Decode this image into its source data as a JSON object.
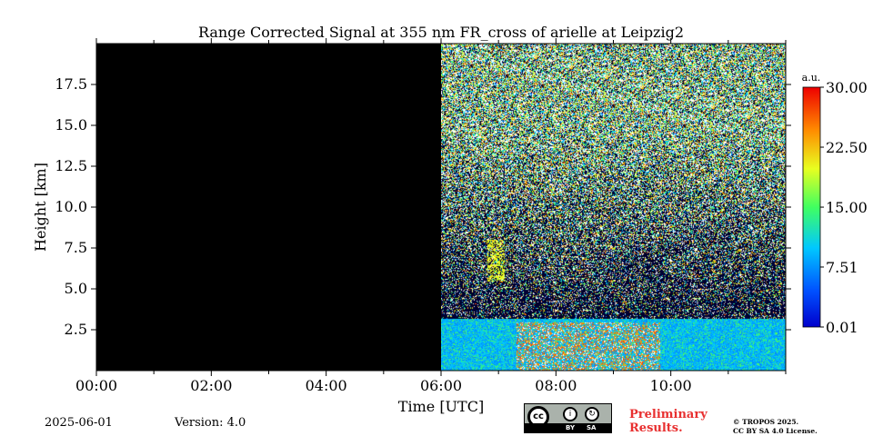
{
  "chart_data": {
    "type": "heatmap",
    "title": "Range Corrected Signal at 355 nm FR_cross of arielle at Leipzig2",
    "xlabel": "Time [UTC]",
    "ylabel": "Height [km]",
    "x_ticks": [
      "00:00",
      "02:00",
      "04:00",
      "06:00",
      "08:00",
      "10:00"
    ],
    "x_tick_hours": [
      0,
      2,
      4,
      6,
      8,
      10
    ],
    "xlim_hours": [
      0,
      12
    ],
    "y_ticks": [
      "2.5",
      "5.0",
      "7.5",
      "10.0",
      "12.5",
      "15.0",
      "17.5"
    ],
    "y_tick_values": [
      2.5,
      5.0,
      7.5,
      10.0,
      12.5,
      15.0,
      17.5
    ],
    "ylim_km": [
      0,
      20
    ],
    "no_data_period_hours": [
      0,
      6
    ],
    "features": [
      {
        "name": "boundary layer aerosol",
        "start_h": 7.3,
        "end_h": 9.8,
        "top_km": 3.0,
        "level": 25
      },
      {
        "name": "aerosol layer",
        "start_h": 6.0,
        "end_h": 12.0,
        "top_km": 3.3,
        "level": 10
      },
      {
        "name": "elevated plume",
        "start_h": 6.8,
        "end_h": 7.1,
        "bottom_km": 5.5,
        "top_km": 8.0,
        "level": 20
      }
    ],
    "colorbar": {
      "label": "a.u.",
      "ticks": [
        "30.00",
        "22.50",
        "15.00",
        "7.51",
        "0.01"
      ],
      "tick_values": [
        30.0,
        22.5,
        15.0,
        7.51,
        0.01
      ],
      "range": [
        0.01,
        30.0
      ],
      "colormap": "jet"
    }
  },
  "footer": {
    "date": "2025-06-01",
    "version": "Version: 4.0",
    "preliminary_line1": "Preliminary",
    "preliminary_line2": "Results.",
    "copyright_line1": "© TROPOS 2025.",
    "copyright_line2": "CC BY SA 4.0 License.",
    "license_badge": {
      "main": "cc",
      "by": "BY",
      "sa": "SA"
    }
  }
}
